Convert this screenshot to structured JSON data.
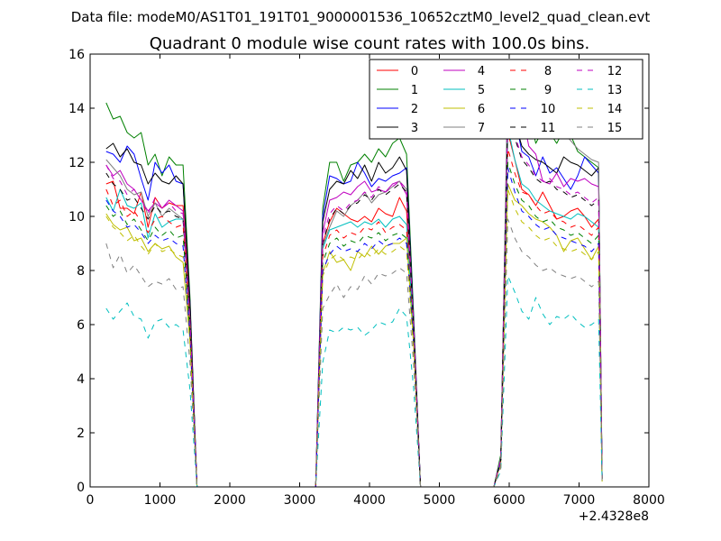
{
  "figure": {
    "suptitle": "Data file: modeM0/AS1T01_191T01_9000001536_10652cztM0_level2_quad_clean.evt"
  },
  "chart_data": {
    "type": "line",
    "title": "Quadrant 0 module wise count rates with 100.0s bins.",
    "xlabel": "",
    "ylabel": "",
    "x_offset_label": "+2.4328e8",
    "xlim": [
      0,
      8000
    ],
    "ylim": [
      0,
      16
    ],
    "xticks": [
      0,
      1000,
      2000,
      3000,
      4000,
      5000,
      6000,
      7000,
      8000
    ],
    "yticks": [
      0,
      2,
      4,
      6,
      8,
      10,
      12,
      14,
      16
    ],
    "grid": false,
    "legend": {
      "placement": "top-right",
      "columns": 4
    },
    "x": [
      230,
      330,
      430,
      530,
      630,
      730,
      830,
      930,
      1030,
      1130,
      1230,
      1330,
      1430,
      1530,
      1630,
      2000,
      2500,
      3000,
      3230,
      3330,
      3430,
      3530,
      3630,
      3730,
      3830,
      3930,
      4030,
      4130,
      4230,
      4330,
      4430,
      4530,
      4630,
      4730,
      5000,
      5500,
      5780,
      5880,
      5980,
      6080,
      6180,
      6280,
      6380,
      6480,
      6580,
      6680,
      6780,
      6880,
      6980,
      7080,
      7180,
      7280,
      7330
    ],
    "series": [
      {
        "name": "0",
        "color": "#ff0000",
        "dash": "solid",
        "values": [
          11.2,
          11.3,
          10.3,
          10.3,
          10.1,
          10.9,
          9.6,
          10.7,
          10.3,
          10.5,
          10.4,
          10.4,
          6.5,
          0.0,
          0.0,
          0.0,
          0.0,
          0.0,
          0.0,
          9.0,
          9.8,
          10.3,
          10.1,
          9.9,
          9.8,
          10.0,
          9.8,
          10.3,
          10.1,
          10.0,
          10.7,
          10.2,
          6.0,
          0.0,
          0.0,
          0.0,
          0.0,
          1.0,
          13.1,
          12.1,
          11.0,
          10.8,
          10.4,
          10.9,
          10.4,
          9.9,
          10.0,
          10.2,
          10.3,
          10.0,
          9.6,
          9.9,
          0.3
        ]
      },
      {
        "name": "1",
        "color": "#008000",
        "dash": "solid",
        "values": [
          14.2,
          13.6,
          13.7,
          13.1,
          12.9,
          13.1,
          11.9,
          12.3,
          11.5,
          12.2,
          11.9,
          11.9,
          7.0,
          0.0,
          0.0,
          0.0,
          0.0,
          0.0,
          0.0,
          10.3,
          12.0,
          12.0,
          11.3,
          11.9,
          12.0,
          12.3,
          12.0,
          12.5,
          12.2,
          12.7,
          12.9,
          12.3,
          6.5,
          0.0,
          0.0,
          0.0,
          0.0,
          1.2,
          14.7,
          13.9,
          13.4,
          13.8,
          12.7,
          13.2,
          13.1,
          12.7,
          13.2,
          13.0,
          12.4,
          12.2,
          12.0,
          11.8,
          0.3
        ]
      },
      {
        "name": "2",
        "color": "#0000ff",
        "dash": "solid",
        "values": [
          12.4,
          12.3,
          12.0,
          12.6,
          12.3,
          11.4,
          10.6,
          12.0,
          11.6,
          11.9,
          11.3,
          11.2,
          6.8,
          0.0,
          0.0,
          0.0,
          0.0,
          0.0,
          0.0,
          10.0,
          11.5,
          11.4,
          11.2,
          11.3,
          12.0,
          11.6,
          11.1,
          11.4,
          11.3,
          11.5,
          11.6,
          11.8,
          6.3,
          0.0,
          0.0,
          0.0,
          0.0,
          1.1,
          14.8,
          13.7,
          12.4,
          12.2,
          11.5,
          12.2,
          11.6,
          11.8,
          11.4,
          11.0,
          11.5,
          12.2,
          11.9,
          11.6,
          0.3
        ]
      },
      {
        "name": "3",
        "color": "#000000",
        "dash": "solid",
        "values": [
          12.5,
          12.7,
          12.2,
          12.5,
          12.0,
          11.9,
          11.2,
          11.6,
          11.3,
          11.2,
          11.5,
          11.2,
          6.8,
          0.0,
          0.0,
          0.0,
          0.0,
          0.0,
          0.0,
          9.8,
          11.0,
          11.3,
          11.2,
          11.7,
          11.4,
          11.9,
          11.3,
          12.0,
          11.6,
          11.8,
          12.2,
          11.7,
          6.2,
          0.0,
          0.0,
          0.0,
          0.0,
          1.1,
          14.6,
          13.5,
          12.6,
          12.3,
          12.1,
          12.0,
          11.8,
          11.6,
          12.2,
          12.0,
          11.9,
          11.7,
          11.5,
          11.8,
          0.3
        ]
      },
      {
        "name": "4",
        "color": "#bf00bf",
        "dash": "solid",
        "values": [
          11.9,
          11.5,
          11.7,
          11.2,
          11.0,
          10.6,
          10.2,
          10.5,
          10.3,
          10.6,
          10.4,
          10.2,
          6.2,
          0.0,
          0.0,
          0.0,
          0.0,
          0.0,
          0.0,
          9.4,
          10.6,
          10.7,
          10.9,
          10.8,
          11.1,
          11.3,
          10.9,
          11.0,
          10.9,
          11.2,
          11.3,
          10.8,
          5.9,
          0.0,
          0.0,
          0.0,
          0.0,
          1.0,
          14.0,
          13.1,
          13.9,
          12.6,
          12.3,
          11.3,
          11.2,
          11.6,
          11.1,
          11.4,
          11.3,
          11.4,
          11.2,
          11.1,
          0.3
        ]
      },
      {
        "name": "5",
        "color": "#00bfbf",
        "dash": "solid",
        "values": [
          10.7,
          10.2,
          11.0,
          10.4,
          10.3,
          10.5,
          9.2,
          10.1,
          9.6,
          9.8,
          9.9,
          9.9,
          6.0,
          0.0,
          0.0,
          0.0,
          0.0,
          0.0,
          0.0,
          8.8,
          9.5,
          9.6,
          9.7,
          9.8,
          9.6,
          9.8,
          9.7,
          9.9,
          9.6,
          9.9,
          10.0,
          9.7,
          5.8,
          0.0,
          0.0,
          0.0,
          0.0,
          1.0,
          13.3,
          12.1,
          11.2,
          11.0,
          10.6,
          10.4,
          10.2,
          10.1,
          10.0,
          9.9,
          10.1,
          10.0,
          9.8,
          9.6,
          0.3
        ]
      },
      {
        "name": "6",
        "color": "#bfbf00",
        "dash": "solid",
        "values": [
          10.1,
          9.7,
          9.5,
          9.6,
          9.1,
          9.2,
          8.7,
          9.0,
          8.8,
          8.9,
          8.5,
          8.3,
          5.4,
          0.0,
          0.0,
          0.0,
          0.0,
          0.0,
          0.0,
          7.9,
          8.7,
          8.3,
          8.4,
          8.0,
          8.7,
          8.5,
          8.9,
          8.6,
          8.9,
          9.0,
          9.0,
          9.2,
          5.3,
          0.0,
          0.0,
          0.0,
          0.0,
          0.9,
          11.2,
          10.6,
          10.4,
          10.1,
          9.9,
          9.8,
          9.6,
          9.3,
          8.7,
          9.1,
          9.2,
          8.8,
          8.4,
          8.9,
          0.2
        ]
      },
      {
        "name": "7",
        "color": "#808080",
        "dash": "solid",
        "values": [
          12.1,
          11.8,
          11.5,
          11.0,
          10.8,
          10.9,
          10.0,
          10.5,
          10.0,
          10.3,
          10.1,
          9.9,
          6.2,
          0.0,
          0.0,
          0.0,
          0.0,
          0.0,
          0.0,
          8.9,
          9.6,
          10.2,
          10.0,
          10.4,
          10.6,
          10.9,
          10.5,
          10.8,
          10.9,
          11.1,
          11.3,
          11.0,
          6.1,
          0.0,
          0.0,
          0.0,
          0.0,
          1.1,
          15.4,
          14.0,
          13.8,
          13.7,
          13.3,
          13.5,
          12.9,
          13.2,
          13.1,
          12.8,
          12.5,
          12.3,
          12.1,
          12.0,
          0.3
        ]
      },
      {
        "name": "8",
        "color": "#ff0000",
        "dash": "dashed",
        "values": [
          11.0,
          10.4,
          10.6,
          10.0,
          10.2,
          9.8,
          9.4,
          9.9,
          10.0,
          9.8,
          9.6,
          9.7,
          5.9,
          0.0,
          0.0,
          0.0,
          0.0,
          0.0,
          0.0,
          8.5,
          9.3,
          9.5,
          9.2,
          9.4,
          9.3,
          9.6,
          9.5,
          9.8,
          9.4,
          9.6,
          9.7,
          9.5,
          5.6,
          0.0,
          0.0,
          0.0,
          0.0,
          0.9,
          12.5,
          11.6,
          10.9,
          10.8,
          10.4,
          10.1,
          10.2,
          9.9,
          9.8,
          9.6,
          9.7,
          9.5,
          9.3,
          9.6,
          0.3
        ]
      },
      {
        "name": "9",
        "color": "#008000",
        "dash": "dashed",
        "values": [
          10.4,
          10.0,
          10.2,
          9.7,
          9.9,
          9.5,
          9.1,
          9.6,
          9.3,
          9.5,
          9.2,
          9.3,
          5.7,
          0.0,
          0.0,
          0.0,
          0.0,
          0.0,
          0.0,
          8.3,
          9.0,
          9.2,
          8.9,
          9.1,
          9.0,
          9.3,
          9.2,
          9.4,
          9.1,
          9.3,
          9.4,
          9.2,
          5.4,
          0.0,
          0.0,
          0.0,
          0.0,
          0.9,
          12.0,
          11.2,
          10.6,
          10.4,
          10.0,
          9.8,
          9.9,
          9.6,
          9.5,
          9.3,
          9.4,
          9.2,
          9.0,
          9.3,
          0.3
        ]
      },
      {
        "name": "10",
        "color": "#0000ff",
        "dash": "dashed",
        "values": [
          10.6,
          10.2,
          10.0,
          9.6,
          9.7,
          9.4,
          9.0,
          9.3,
          9.1,
          9.2,
          9.0,
          8.9,
          5.6,
          0.0,
          0.0,
          0.0,
          0.0,
          0.0,
          0.0,
          8.0,
          8.6,
          8.9,
          8.7,
          8.8,
          8.7,
          9.0,
          8.8,
          9.1,
          8.9,
          9.0,
          9.2,
          9.0,
          5.3,
          0.0,
          0.0,
          0.0,
          0.0,
          0.9,
          11.8,
          10.9,
          10.2,
          10.0,
          9.7,
          9.5,
          9.6,
          9.3,
          9.2,
          9.1,
          9.0,
          8.9,
          8.7,
          9.0,
          0.3
        ]
      },
      {
        "name": "11",
        "color": "#000000",
        "dash": "dashed",
        "values": [
          11.6,
          11.2,
          11.0,
          10.6,
          10.7,
          10.3,
          9.9,
          10.4,
          10.1,
          10.2,
          10.0,
          9.9,
          6.1,
          0.0,
          0.0,
          0.0,
          0.0,
          0.0,
          0.0,
          9.0,
          9.9,
          10.3,
          10.1,
          10.4,
          10.5,
          10.8,
          10.6,
          11.0,
          10.8,
          11.0,
          11.2,
          10.9,
          6.0,
          0.0,
          0.0,
          0.0,
          0.0,
          1.0,
          13.8,
          12.9,
          12.1,
          11.8,
          11.4,
          11.2,
          11.3,
          11.0,
          10.9,
          10.7,
          10.8,
          10.6,
          10.4,
          10.6,
          0.3
        ]
      },
      {
        "name": "12",
        "color": "#bf00bf",
        "dash": "dashed",
        "values": [
          11.9,
          11.4,
          11.3,
          10.8,
          11.0,
          10.6,
          10.1,
          10.7,
          10.3,
          10.5,
          10.2,
          10.1,
          6.2,
          0.0,
          0.0,
          0.0,
          0.0,
          0.0,
          0.0,
          9.2,
          10.1,
          10.4,
          10.2,
          10.5,
          10.6,
          10.9,
          10.7,
          11.1,
          10.9,
          11.1,
          11.3,
          11.0,
          6.1,
          0.0,
          0.0,
          0.0,
          0.0,
          1.0,
          13.9,
          13.0,
          12.2,
          11.9,
          11.5,
          11.3,
          11.4,
          11.1,
          11.0,
          10.8,
          10.9,
          10.7,
          10.5,
          10.7,
          0.3
        ]
      },
      {
        "name": "13",
        "color": "#00bfbf",
        "dash": "dashed",
        "values": [
          6.6,
          6.2,
          6.5,
          6.8,
          6.3,
          6.2,
          5.5,
          6.1,
          6.2,
          5.9,
          6.0,
          5.8,
          3.6,
          0.0,
          0.0,
          0.0,
          0.0,
          0.0,
          0.0,
          4.6,
          5.8,
          5.7,
          5.9,
          5.8,
          5.9,
          5.6,
          5.8,
          6.1,
          6.0,
          6.1,
          6.6,
          6.3,
          3.7,
          0.0,
          0.0,
          0.0,
          0.0,
          0.6,
          7.8,
          7.2,
          6.5,
          6.2,
          7.0,
          6.4,
          6.0,
          6.3,
          6.2,
          6.4,
          6.1,
          5.9,
          6.0,
          6.2,
          0.2
        ]
      },
      {
        "name": "14",
        "color": "#bfbf00",
        "dash": "dashed",
        "values": [
          10.0,
          9.6,
          9.4,
          9.1,
          9.3,
          8.9,
          8.6,
          9.0,
          8.7,
          8.8,
          8.6,
          8.5,
          5.3,
          0.0,
          0.0,
          0.0,
          0.0,
          0.0,
          0.0,
          7.8,
          8.4,
          8.6,
          8.4,
          8.5,
          8.4,
          8.7,
          8.5,
          8.8,
          8.6,
          8.7,
          8.9,
          8.7,
          5.1,
          0.0,
          0.0,
          0.0,
          0.0,
          0.8,
          11.0,
          10.3,
          9.8,
          9.6,
          9.3,
          9.1,
          9.2,
          8.9,
          8.8,
          8.7,
          8.8,
          8.6,
          8.4,
          8.7,
          0.2
        ]
      },
      {
        "name": "15",
        "color": "#808080",
        "dash": "dashed",
        "values": [
          9.0,
          8.1,
          8.6,
          7.9,
          8.2,
          7.8,
          7.4,
          7.6,
          7.5,
          7.7,
          7.3,
          7.4,
          4.6,
          0.0,
          0.0,
          0.0,
          0.0,
          0.0,
          0.0,
          6.6,
          7.1,
          7.5,
          7.0,
          7.4,
          7.3,
          7.8,
          7.5,
          7.9,
          7.8,
          7.9,
          8.1,
          7.9,
          4.6,
          0.0,
          0.0,
          0.0,
          0.0,
          0.7,
          9.9,
          9.2,
          8.7,
          8.5,
          8.2,
          8.0,
          8.1,
          7.9,
          7.8,
          7.7,
          7.8,
          7.6,
          7.4,
          7.6,
          0.2
        ]
      }
    ]
  }
}
